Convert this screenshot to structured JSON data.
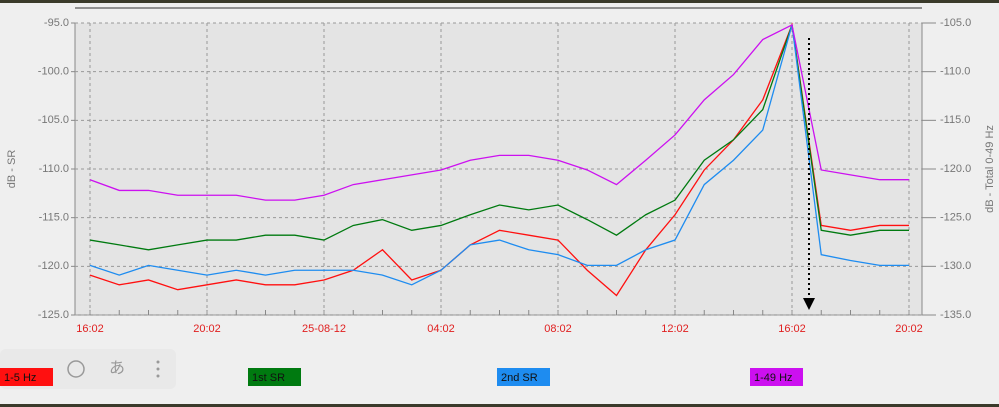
{
  "chart_data": {
    "type": "line",
    "y_label": "dB - SR",
    "y2_label": "dB - Total 0-49 Hz",
    "categories": [
      "16:02",
      null,
      null,
      null,
      "20:02",
      null,
      null,
      null,
      "25-08-12",
      null,
      null,
      null,
      "04:02",
      null,
      null,
      null,
      "08:02",
      null,
      null,
      null,
      "12:02",
      null,
      null,
      null,
      "16:02",
      null,
      null,
      null,
      "20:02"
    ],
    "series": [
      {
        "name": "1-5 Hz",
        "color": "#ff1010",
        "values": [
          -120.9,
          -121.9,
          -121.4,
          -122.4,
          -121.9,
          -121.4,
          -121.9,
          -121.9,
          -121.4,
          -120.4,
          -118.3,
          -121.4,
          -120.4,
          -117.8,
          -116.3,
          -116.8,
          -117.3,
          -120.4,
          -123.0,
          -118.3,
          -114.7,
          -110.1,
          -107.0,
          -102.9,
          -95.2,
          -115.8,
          -116.3,
          -115.8,
          -115.8
        ]
      },
      {
        "name": "1st SR",
        "color": "#007a10",
        "values": [
          -117.3,
          -117.8,
          -118.3,
          -117.8,
          -117.3,
          -117.3,
          -116.8,
          -116.8,
          -117.3,
          -115.8,
          -115.2,
          -116.3,
          -115.8,
          -114.7,
          -113.7,
          -114.2,
          -113.7,
          -115.2,
          -116.8,
          -114.7,
          -113.2,
          -109.1,
          -107.0,
          -103.9,
          -95.2,
          -116.3,
          -116.8,
          -116.3,
          -116.3
        ]
      },
      {
        "name": "2nd SR",
        "color": "#1e8cf0",
        "values": [
          -119.9,
          -120.9,
          -119.9,
          -120.4,
          -120.9,
          -120.4,
          -120.9,
          -120.4,
          -120.4,
          -120.4,
          -120.9,
          -121.9,
          -120.4,
          -117.8,
          -117.3,
          -118.3,
          -118.8,
          -119.9,
          -119.9,
          -118.3,
          -117.3,
          -111.6,
          -109.1,
          -106.0,
          -95.2,
          -118.8,
          -119.4,
          -119.9,
          -119.9
        ]
      },
      {
        "name": "1-49 Hz",
        "color": "#cc10f0",
        "axis": "y2",
        "values": [
          -121.1,
          -122.2,
          -122.2,
          -122.7,
          -122.7,
          -122.7,
          -123.2,
          -123.2,
          -122.7,
          -121.6,
          -121.1,
          -120.6,
          -120.1,
          -119.1,
          -118.6,
          -118.6,
          -119.1,
          -120.1,
          -121.6,
          -119.1,
          -116.5,
          -112.9,
          -110.3,
          -106.7,
          -105.2,
          -120.1,
          -120.6,
          -121.1,
          -121.1
        ]
      }
    ],
    "ylim": [
      -125,
      -95
    ],
    "yticks": [
      {
        "value": -95,
        "label": "-95.0"
      },
      {
        "value": -100,
        "label": "-100.0"
      },
      {
        "value": -105,
        "label": "-105.0"
      },
      {
        "value": -110,
        "label": "-110.0"
      },
      {
        "value": -115,
        "label": "-115.0"
      },
      {
        "value": -120,
        "label": "-120.0"
      },
      {
        "value": -125,
        "label": "-125.0"
      }
    ],
    "y2lim": [
      -135,
      -105
    ],
    "y2ticks": [
      {
        "value": -105,
        "label": "-105.0"
      },
      {
        "value": -110,
        "label": "-110.0"
      },
      {
        "value": -115,
        "label": "-115.0"
      },
      {
        "value": -120,
        "label": "-120.0"
      },
      {
        "value": -125,
        "label": "-125.0"
      },
      {
        "value": -130,
        "label": "-130.0"
      },
      {
        "value": -135,
        "label": "-135.0"
      }
    ],
    "grid": true
  },
  "toolbar": {
    "label": "あ"
  }
}
